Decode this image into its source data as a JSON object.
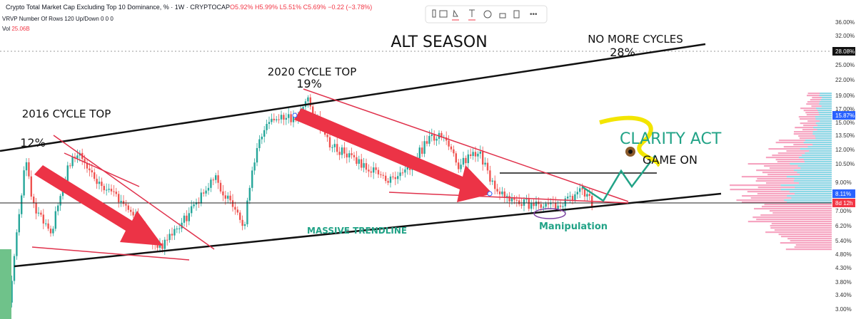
{
  "header": {
    "symbol": "Crypto Total Market Cap Excluding Top 10 Dominance, % · 1W · CRYPTOCAP",
    "open": "O5.92%",
    "high": "H5.99%",
    "low": "L5.51%",
    "close": "C5.69%",
    "change": "−0.22 (−3.78%)",
    "indicator": "VRVP Number Of Rows 120 Up/Down 0 0 0",
    "volume_label": "Vol",
    "volume": "25.06B",
    "currency": "$"
  },
  "price_axis": [
    "36.00%",
    "32.00%",
    "28.08%",
    "25.00%",
    "22.00%",
    "19.00%",
    "17.00%",
    "15.87%",
    "15.00%",
    "13.50%",
    "12.00%",
    "10.50%",
    "9.00%",
    "8.11%",
    "8d 12h",
    "7.00%",
    "6.20%",
    "5.40%",
    "4.80%",
    "4.30%",
    "3.80%",
    "3.40%",
    "3.00%"
  ],
  "annotations": {
    "alt_season": "ALT SEASON",
    "no_more_cycles": "NO MORE CYCLES",
    "target": "28%",
    "top_2020": "2020 CYCLE TOP",
    "top_2020_value": "19%",
    "top_2016": "2016 CYCLE TOP",
    "top_2016_value": "12%",
    "clarity": "CLARITY ACT",
    "game_on": "GAME ON",
    "trendline": "MASSIVE TRENDLINE",
    "manipulation": "Manipulation"
  }
}
